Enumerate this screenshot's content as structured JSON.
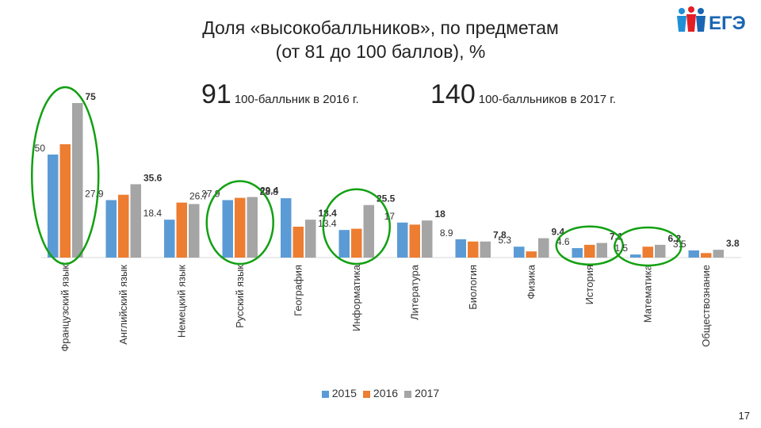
{
  "title": {
    "line1": "Доля «высокобалльников», по предметам",
    "line2": "(от 81 до 100 баллов), %"
  },
  "stats": [
    {
      "number": "91",
      "text": "100-балльник в 2016 г."
    },
    {
      "number": "140",
      "text": "100-балльников в 2017 г."
    }
  ],
  "logo": {
    "text": "ЕГЭ",
    "icon": "ege-logo-icon",
    "colors": [
      "#1f8fd6",
      "#e31e24",
      "#1a66b3"
    ]
  },
  "page_number": "17",
  "colors": {
    "s2015": "#5b9bd5",
    "s2016": "#ed7d31",
    "s2017": "#a5a5a5",
    "highlight": "#12a012"
  },
  "chart_data": {
    "type": "bar",
    "categories": [
      "Французский язык",
      "Английский язык",
      "Немецкий язык",
      "Русский язык",
      "География",
      "Информатика",
      "Литература",
      "Биология",
      "Физика",
      "История",
      "Математика",
      "Обществознание"
    ],
    "series": [
      {
        "name": "2015",
        "values": [
          50,
          27.9,
          18.4,
          27.9,
          28.8,
          13.4,
          17,
          8.9,
          5.3,
          4.6,
          1.5,
          3.5
        ]
      },
      {
        "name": "2016",
        "values": [
          55,
          30.5,
          26.7,
          29,
          15,
          14,
          16,
          7.8,
          3,
          6.2,
          5.3,
          2.2
        ]
      },
      {
        "name": "2017",
        "values": [
          75,
          35.6,
          26,
          29.4,
          18.4,
          25.5,
          18,
          7.8,
          9.4,
          7.1,
          6.2,
          3.8
        ]
      }
    ],
    "data_labels": [
      [
        {
          "series": 2,
          "text": "75"
        },
        {
          "series": 0,
          "text": "50"
        }
      ],
      [
        {
          "series": 0,
          "text": "27.9"
        },
        {
          "series": 2,
          "text": "35.6"
        }
      ],
      [
        {
          "series": 0,
          "text": "18.4"
        },
        {
          "series": 1,
          "text": "26.7"
        }
      ],
      [
        {
          "series": 0,
          "text": "27.9"
        },
        {
          "series": 2,
          "text": "29.4"
        }
      ],
      [
        {
          "series": 0,
          "text": "28.8"
        },
        {
          "series": 2,
          "text": "18.4"
        }
      ],
      [
        {
          "series": 0,
          "text": "13.4"
        },
        {
          "series": 2,
          "text": "25.5"
        }
      ],
      [
        {
          "series": 0,
          "text": "17"
        },
        {
          "series": 2,
          "text": "18"
        }
      ],
      [
        {
          "series": 0,
          "text": "8.9"
        },
        {
          "series": 2,
          "text": "7.8"
        }
      ],
      [
        {
          "series": 0,
          "text": "5.3"
        },
        {
          "series": 2,
          "text": "9.4"
        }
      ],
      [
        {
          "series": 0,
          "text": "4.6"
        },
        {
          "series": 2,
          "text": "7.1"
        }
      ],
      [
        {
          "series": 0,
          "text": "1.5"
        },
        {
          "series": 2,
          "text": "6.2"
        }
      ],
      [
        {
          "series": 0,
          "text": "3.5"
        },
        {
          "series": 2,
          "text": "3.8"
        }
      ]
    ],
    "highlighted_categories": [
      "Французский язык",
      "Русский язык",
      "Информатика",
      "История",
      "Математика"
    ],
    "ylim": [
      0,
      100
    ],
    "grid": false,
    "legend_position": "bottom"
  }
}
